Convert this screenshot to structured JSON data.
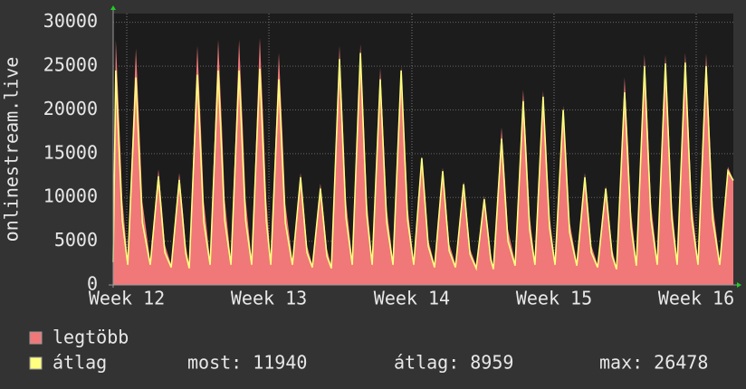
{
  "chart_data": {
    "type": "line",
    "ylabel": "onlinestream.live",
    "xlim": [
      0,
      30.58
    ],
    "ylim": [
      0,
      31000
    ],
    "xticks": [
      {
        "value": 0.67,
        "label": "Week 12"
      },
      {
        "value": 7.68,
        "label": "Week 13"
      },
      {
        "value": 14.73,
        "label": "Week 14"
      },
      {
        "value": 21.74,
        "label": "Week 15"
      },
      {
        "value": 28.75,
        "label": "Week 16"
      }
    ],
    "yticks": [
      0,
      5000,
      10000,
      15000,
      20000,
      25000,
      30000
    ],
    "grid": true,
    "x": [
      0,
      0.13,
      0.31,
      0.45,
      0.72,
      1.12,
      1.3,
      1.44,
      1.83,
      2.23,
      2.41,
      2.55,
      2.86,
      3.26,
      3.44,
      3.58,
      3.75,
      4.15,
      4.33,
      4.47,
      4.78,
      5.18,
      5.36,
      5.5,
      5.81,
      6.21,
      6.39,
      6.53,
      6.83,
      7.23,
      7.41,
      7.55,
      7.77,
      8.17,
      8.35,
      8.49,
      8.84,
      9.24,
      9.42,
      9.56,
      9.82,
      10.22,
      10.4,
      10.54,
      10.76,
      11.16,
      11.34,
      11.48,
      11.79,
      12.19,
      12.37,
      12.51,
      12.77,
      13.17,
      13.35,
      13.49,
      13.8,
      14.2,
      14.38,
      14.52,
      14.82,
      15.22,
      15.4,
      15.54,
      15.85,
      16.25,
      16.43,
      16.57,
      16.88,
      17.28,
      17.46,
      17.6,
      17.9,
      18.3,
      18.48,
      18.62,
      18.75,
      19.15,
      19.33,
      19.47,
      19.82,
      20.22,
      20.4,
      20.54,
      20.8,
      21.2,
      21.38,
      21.52,
      21.79,
      22.19,
      22.37,
      22.51,
      22.86,
      23.26,
      23.44,
      23.58,
      23.89,
      24.29,
      24.47,
      24.61,
      24.82,
      25.22,
      25.4,
      25.54,
      25.8,
      26.2,
      26.38,
      26.52,
      26.83,
      27.23,
      27.41,
      27.55,
      27.81,
      28.21,
      28.39,
      28.53,
      28.84,
      29.24,
      29.42,
      29.56,
      29.91,
      30.31,
      30.58
    ],
    "series": [
      {
        "name": "legtöbb",
        "color": "#f07878",
        "style": "area",
        "values": [
          2600,
          28000,
          18200,
          9800,
          2800,
          27000,
          17600,
          9500,
          2700,
          13200,
          8600,
          4600,
          2300,
          12800,
          8300,
          4500,
          2300,
          27300,
          17700,
          9600,
          2800,
          28000,
          18200,
          9800,
          2800,
          28000,
          18200,
          9800,
          2800,
          28200,
          18300,
          9900,
          2800,
          26500,
          17200,
          9300,
          2800,
          12800,
          8300,
          4500,
          2300,
          11600,
          7500,
          4100,
          2200,
          27300,
          17700,
          9600,
          2800,
          27500,
          17900,
          9600,
          2800,
          24800,
          16100,
          8700,
          2800,
          25000,
          16300,
          8800,
          2800,
          14700,
          9600,
          5100,
          2400,
          13400,
          8700,
          4700,
          2400,
          11800,
          7700,
          4100,
          2200,
          10200,
          6600,
          3600,
          2000,
          18000,
          11700,
          6300,
          2600,
          22300,
          14500,
          7800,
          2700,
          22200,
          14400,
          7800,
          2700,
          20500,
          13300,
          7200,
          2600,
          12800,
          8300,
          4500,
          2300,
          11300,
          7300,
          4000,
          2000,
          23700,
          15400,
          8300,
          2600,
          26300,
          17100,
          9200,
          2800,
          26300,
          17100,
          9200,
          2800,
          26500,
          17200,
          9300,
          2800,
          26400,
          17200,
          9200,
          2800,
          13500,
          12000
        ]
      },
      {
        "name": "átlag",
        "color": "#ffff80",
        "style": "line",
        "values": [
          2600,
          24500,
          14700,
          7400,
          2300,
          23700,
          14200,
          7100,
          2300,
          12400,
          7400,
          3700,
          2000,
          12000,
          7200,
          3600,
          1900,
          24000,
          14400,
          7200,
          2300,
          24500,
          14700,
          7400,
          2300,
          24500,
          14700,
          7400,
          2300,
          24700,
          14800,
          7400,
          2300,
          23500,
          14100,
          7100,
          2300,
          12300,
          7400,
          3700,
          2000,
          11000,
          6600,
          3300,
          1900,
          25800,
          15500,
          7700,
          2300,
          26500,
          15900,
          8000,
          2300,
          23500,
          14100,
          7100,
          2300,
          24500,
          14700,
          7400,
          2300,
          14500,
          8700,
          4400,
          2000,
          13000,
          7800,
          3900,
          2000,
          11500,
          6900,
          3500,
          1900,
          9800,
          5900,
          2900,
          1800,
          16700,
          10000,
          5000,
          2200,
          21000,
          12600,
          6300,
          2300,
          21500,
          12900,
          6500,
          2300,
          20000,
          12000,
          6000,
          2200,
          12300,
          7400,
          3700,
          2000,
          11000,
          6600,
          3300,
          1800,
          22000,
          13200,
          6600,
          2200,
          25000,
          15000,
          7500,
          2300,
          25300,
          15200,
          7600,
          2300,
          25400,
          15200,
          7600,
          2300,
          25000,
          15000,
          7500,
          2300,
          13000,
          11940
        ]
      }
    ],
    "stats": [
      {
        "label": "most:",
        "value": 11940
      },
      {
        "label": "átlag:",
        "value": 8959
      },
      {
        "label": "max:",
        "value": 26478
      }
    ]
  }
}
